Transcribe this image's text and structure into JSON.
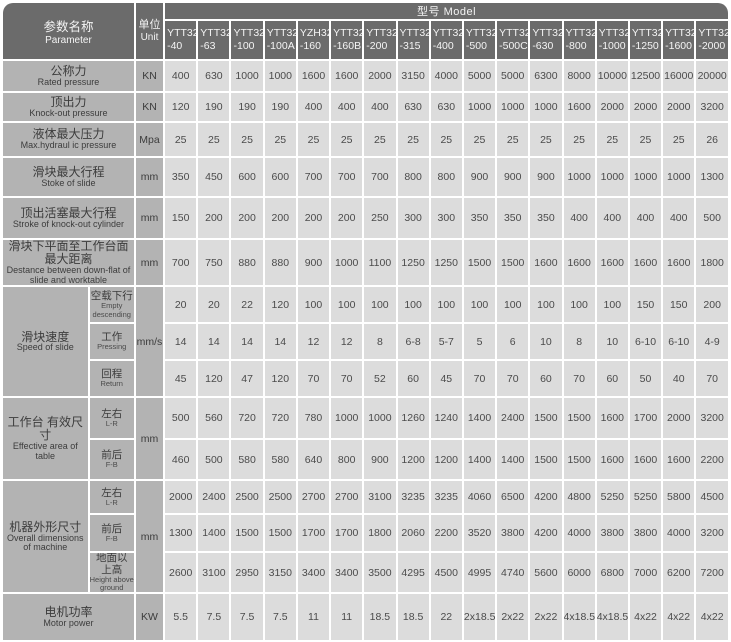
{
  "colors": {
    "header_bg": "#6b6b6b",
    "header_text": "#f4f4f4",
    "label_bg": "#b3b3b3",
    "cell_bg": "#dcdcdc",
    "cell_text": "#4b4b4b",
    "grid": "#ffffff"
  },
  "header": {
    "parameter_label_zh": "参数名称",
    "parameter_label_en": "Parameter",
    "unit_label_zh": "单位",
    "unit_label_en": "Unit",
    "model_label": "型号 Model",
    "models": [
      {
        "line1": "YTT32",
        "line2": "-40"
      },
      {
        "line1": "YTT32",
        "line2": "-63"
      },
      {
        "line1": "YTT32",
        "line2": "-100"
      },
      {
        "line1": "YTT32",
        "line2": "-100A"
      },
      {
        "line1": "YZH32",
        "line2": "-160"
      },
      {
        "line1": "YTT32",
        "line2": "-160B"
      },
      {
        "line1": "YTT32",
        "line2": "-200"
      },
      {
        "line1": "YTT32",
        "line2": "-315"
      },
      {
        "line1": "YTT32",
        "line2": "-400"
      },
      {
        "line1": "YTT32",
        "line2": "-500"
      },
      {
        "line1": "YTT32",
        "line2": "-500C"
      },
      {
        "line1": "YTT32",
        "line2": "-630"
      },
      {
        "line1": "YTT32",
        "line2": "-800"
      },
      {
        "line1": "YTT32",
        "line2": "-1000"
      },
      {
        "line1": "YTT32",
        "line2": "-1250"
      },
      {
        "line1": "YTT32",
        "line2": "-1600"
      },
      {
        "line1": "YTT32",
        "line2": "-2000"
      }
    ]
  },
  "rows": [
    {
      "name_zh": "公称力",
      "name_en": "Rated pressure",
      "unit": "KN",
      "values": [
        "400",
        "630",
        "1000",
        "1000",
        "1600",
        "1600",
        "2000",
        "3150",
        "4000",
        "5000",
        "5000",
        "6300",
        "8000",
        "10000",
        "12500",
        "16000",
        "20000"
      ]
    },
    {
      "name_zh": "顶出力",
      "name_en": "Knock-out pressure",
      "unit": "KN",
      "values": [
        "120",
        "190",
        "190",
        "190",
        "400",
        "400",
        "400",
        "630",
        "630",
        "1000",
        "1000",
        "1000",
        "1600",
        "2000",
        "2000",
        "2000",
        "3200"
      ]
    },
    {
      "name_zh": "液体最大压力",
      "name_en": "Max.hydraul ic pressure",
      "unit": "Mpa",
      "values": [
        "25",
        "25",
        "25",
        "25",
        "25",
        "25",
        "25",
        "25",
        "25",
        "25",
        "25",
        "25",
        "25",
        "25",
        "25",
        "25",
        "26"
      ]
    },
    {
      "name_zh": "滑块最大行程",
      "name_en": "Stoke of slide",
      "unit": "mm",
      "values": [
        "350",
        "450",
        "600",
        "600",
        "700",
        "700",
        "700",
        "800",
        "800",
        "900",
        "900",
        "900",
        "1000",
        "1000",
        "1000",
        "1000",
        "1300"
      ]
    },
    {
      "name_zh": "顶出活塞最大行程",
      "name_en": "Stroke of knock-out cylinder",
      "unit": "mm",
      "values": [
        "150",
        "200",
        "200",
        "200",
        "200",
        "200",
        "250",
        "300",
        "300",
        "350",
        "350",
        "350",
        "400",
        "400",
        "400",
        "400",
        "500"
      ]
    },
    {
      "name_zh": "滑块下平面至工作台面最大距离",
      "name_en": "Destance between down-flat of slide and worktable",
      "unit": "mm",
      "values": [
        "700",
        "750",
        "880",
        "880",
        "900",
        "1000",
        "1100",
        "1250",
        "1250",
        "1500",
        "1500",
        "1600",
        "1600",
        "1600",
        "1600",
        "1600",
        "1800"
      ]
    },
    {
      "name_zh": "滑块速度",
      "name_en": "Speed of slide",
      "unit": "mm/s",
      "subrows": [
        {
          "label_zh": "空载下行",
          "label_en": "Empty descending",
          "values": [
            "20",
            "20",
            "22",
            "120",
            "100",
            "100",
            "100",
            "100",
            "100",
            "100",
            "100",
            "100",
            "100",
            "100",
            "150",
            "150",
            "200"
          ]
        },
        {
          "label_zh": "工作",
          "label_en": "Pressing",
          "values": [
            "14",
            "14",
            "14",
            "14",
            "12",
            "12",
            "8",
            "6-8",
            "5-7",
            "5",
            "6",
            "10",
            "8",
            "10",
            "6-10",
            "6-10",
            "4-9"
          ]
        },
        {
          "label_zh": "回程",
          "label_en": "Return",
          "values": [
            "45",
            "120",
            "47",
            "120",
            "70",
            "70",
            "52",
            "60",
            "45",
            "70",
            "70",
            "60",
            "70",
            "60",
            "50",
            "40",
            "70"
          ]
        }
      ]
    },
    {
      "name_zh": "工作台 有效尺寸",
      "name_en": "Effective area of table",
      "unit": "mm",
      "subrows": [
        {
          "label_zh": "左右",
          "label_en": "L-R",
          "values": [
            "500",
            "560",
            "720",
            "720",
            "780",
            "1000",
            "1000",
            "1260",
            "1240",
            "1400",
            "2400",
            "1500",
            "1500",
            "1600",
            "1700",
            "2000",
            "3200"
          ]
        },
        {
          "label_zh": "前后",
          "label_en": "F-B",
          "values": [
            "460",
            "500",
            "580",
            "580",
            "640",
            "800",
            "900",
            "1200",
            "1200",
            "1400",
            "1400",
            "1500",
            "1500",
            "1600",
            "1600",
            "1600",
            "2200"
          ]
        }
      ]
    },
    {
      "name_zh": "机器外形尺寸",
      "name_en": "Overall dimensions of machine",
      "unit": "mm",
      "subrows": [
        {
          "label_zh": "左右",
          "label_en": "L-R",
          "values": [
            "2000",
            "2400",
            "2500",
            "2500",
            "2700",
            "2700",
            "3100",
            "3235",
            "3235",
            "4060",
            "6500",
            "4200",
            "4800",
            "5250",
            "5250",
            "5800",
            "4500"
          ]
        },
        {
          "label_zh": "前后",
          "label_en": "F-B",
          "values": [
            "1300",
            "1400",
            "1500",
            "1500",
            "1700",
            "1700",
            "1800",
            "2060",
            "2200",
            "3520",
            "3800",
            "4200",
            "4000",
            "3800",
            "3800",
            "4000",
            "3200"
          ]
        },
        {
          "label_zh": "地面以 上高",
          "label_en": "Height above ground",
          "values": [
            "2600",
            "3100",
            "2950",
            "3150",
            "3400",
            "3400",
            "3500",
            "4295",
            "4500",
            "4995",
            "4740",
            "5600",
            "6000",
            "6800",
            "7000",
            "6200",
            "7200"
          ]
        }
      ]
    },
    {
      "name_zh": "电机功率",
      "name_en": "Motor power",
      "unit": "KW",
      "values": [
        "5.5",
        "7.5",
        "7.5",
        "7.5",
        "11",
        "11",
        "18.5",
        "18.5",
        "22",
        "2x18.5",
        "2x22",
        "2x22",
        "4x18.5",
        "4x18.5",
        "4x22",
        "4x22",
        "4x22"
      ]
    }
  ]
}
